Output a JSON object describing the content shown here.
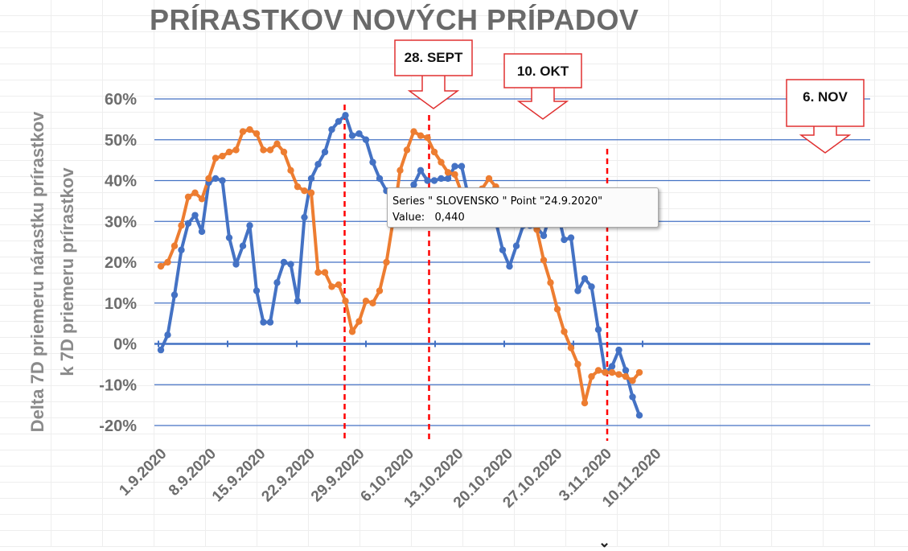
{
  "title": "PRÍRASTKOV NOVÝCH PRÍPADOV",
  "colors": {
    "slovensko": "#4472c4",
    "series2": "#ed7d31",
    "grid": "#4472c4",
    "axis_text": "#6d6d6d",
    "marker_line": "#ff0000"
  },
  "chart_data": {
    "type": "line",
    "title": "PRÍRASTKOV NOVÝCH PRÍPADOV",
    "ylabel": "Delta 7D priemeru nárastku prírastkov k 7D priemeru prírastkov",
    "ylabel_lines": [
      "Delta 7D priemeru nárastku prírastkov",
      "k 7D priemeru prírastkov"
    ],
    "xlabel": "",
    "ylim": [
      -0.2,
      0.6
    ],
    "y_ticks": [
      -0.2,
      -0.1,
      0,
      0.1,
      0.2,
      0.3,
      0.4,
      0.5,
      0.6
    ],
    "y_tick_labels": [
      "-20%",
      "-10%",
      "0%",
      "10%",
      "20%",
      "30%",
      "40%",
      "50%",
      "60%"
    ],
    "x_start": "1.9.2020",
    "x_tick_labels": [
      "1.9.2020",
      "8.9.2020",
      "15.9.2020",
      "22.9.2020",
      "29.9.2020",
      "6.10.2020",
      "13.10.2020",
      "20.10.2020",
      "27.10.2020",
      "3.11.2020",
      "10.11.2020"
    ],
    "grid": true,
    "series": [
      {
        "name": "SLOVENSKO",
        "color": "#4472c4",
        "values": [
          -0.015,
          0.022,
          0.12,
          0.23,
          0.295,
          0.315,
          0.275,
          0.395,
          0.405,
          0.4,
          0.26,
          0.195,
          0.24,
          0.29,
          0.13,
          0.053,
          0.053,
          0.15,
          0.2,
          0.195,
          0.105,
          0.31,
          0.405,
          0.44,
          0.47,
          0.525,
          0.545,
          0.56,
          0.51,
          0.515,
          0.5,
          0.445,
          0.405,
          0.375,
          0.375,
          0.37,
          0.35,
          0.39,
          0.425,
          0.4,
          0.4,
          0.405,
          0.405,
          0.435,
          0.435,
          0.36,
          0.33,
          0.32,
          0.31,
          0.3,
          0.23,
          0.19,
          0.24,
          0.29,
          0.29,
          0.285,
          0.265,
          0.32,
          0.325,
          0.255,
          0.26,
          0.13,
          0.16,
          0.14,
          0.035,
          -0.07,
          -0.055,
          -0.015,
          -0.065,
          -0.13,
          -0.175
        ]
      },
      {
        "name": "",
        "color": "#ed7d31",
        "values": [
          0.19,
          0.2,
          0.24,
          0.29,
          0.36,
          0.37,
          0.355,
          0.405,
          0.455,
          0.46,
          0.47,
          0.475,
          0.52,
          0.525,
          0.515,
          0.475,
          0.475,
          0.49,
          0.47,
          0.425,
          0.385,
          0.375,
          0.37,
          0.175,
          0.175,
          0.14,
          0.145,
          0.105,
          0.03,
          0.055,
          0.105,
          0.1,
          0.13,
          0.2,
          0.305,
          0.425,
          0.475,
          0.52,
          0.51,
          0.505,
          0.47,
          0.445,
          0.42,
          0.415,
          0.37,
          0.36,
          0.375,
          0.38,
          0.405,
          0.385,
          0.35,
          0.35,
          0.335,
          0.325,
          0.3,
          0.28,
          0.205,
          0.15,
          0.085,
          0.03,
          -0.01,
          -0.05,
          -0.145,
          -0.08,
          -0.065,
          -0.07,
          -0.07,
          -0.075,
          -0.08,
          -0.09,
          -0.07
        ]
      }
    ],
    "annotations": [
      {
        "label": "28. SEPT",
        "date": "28.9.2020"
      },
      {
        "label": "10. OKT",
        "date": "10.10.2020"
      },
      {
        "label": "6. NOV",
        "date": "6.11.2020"
      }
    ],
    "tooltip": {
      "line1": "Series \" SLOVENSKO \" Point \"24.9.2020\"",
      "line2_label": "Value:",
      "line2_value": "0,440",
      "date": "24.9.2020",
      "value": 0.44
    }
  }
}
